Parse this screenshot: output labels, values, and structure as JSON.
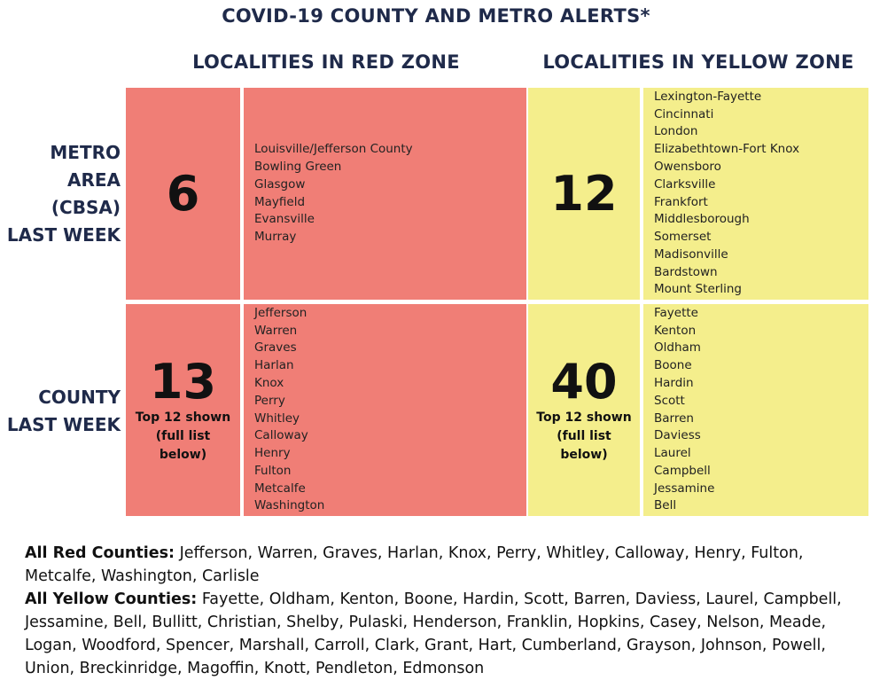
{
  "title": "COVID-19 COUNTY AND METRO ALERTS*",
  "columns": {
    "red": "LOCALITIES IN RED ZONE",
    "yellow": "LOCALITIES IN YELLOW ZONE"
  },
  "rows": {
    "metro": [
      "METRO",
      "AREA",
      "(CBSA)",
      "LAST WEEK"
    ],
    "county": [
      "COUNTY",
      "LAST WEEK"
    ]
  },
  "colors": {
    "red_zone": "#f07e76",
    "yellow_zone": "#f4ee8c",
    "heading": "#1f2a4a"
  },
  "metro": {
    "red": {
      "count": "6",
      "list": [
        "Louisville/Jefferson County",
        "Bowling Green",
        "Glasgow",
        "Mayfield",
        "Evansville",
        "Murray"
      ]
    },
    "yellow": {
      "count": "12",
      "list": [
        "Lexington-Fayette",
        "Cincinnati",
        "London",
        "Elizabethtown-Fort Knox",
        "Owensboro",
        "Clarksville",
        "Frankfort",
        "Middlesborough",
        "Somerset",
        "Madisonville",
        "Bardstown",
        "Mount Sterling"
      ]
    }
  },
  "county": {
    "red": {
      "count": "13",
      "note": [
        "Top 12 shown",
        "(full list",
        "below)"
      ],
      "list": [
        "Jefferson",
        "Warren",
        "Graves",
        "Harlan",
        "Knox",
        "Perry",
        "Whitley",
        "Calloway",
        "Henry",
        "Fulton",
        "Metcalfe",
        "Washington"
      ]
    },
    "yellow": {
      "count": "40",
      "note": [
        "Top 12 shown",
        "(full list",
        "below)"
      ],
      "list": [
        "Fayette",
        "Kenton",
        "Oldham",
        "Boone",
        "Hardin",
        "Scott",
        "Barren",
        "Daviess",
        "Laurel",
        "Campbell",
        "Jessamine",
        "Bell"
      ]
    }
  },
  "footer": {
    "red_label": "All Red Counties:",
    "red_text": " Jefferson, Warren, Graves, Harlan, Knox, Perry, Whitley, Calloway, Henry, Fulton, Metcalfe, Washington, Carlisle",
    "yellow_label": "All Yellow Counties:",
    "yellow_text": " Fayette, Oldham, Kenton, Boone, Hardin, Scott, Barren, Daviess, Laurel, Campbell, Jessamine, Bell, Bullitt, Christian, Shelby, Pulaski, Henderson, Franklin, Hopkins, Casey, Nelson, Meade, Logan, Woodford, Spencer, Marshall, Carroll, Clark, Grant, Hart, Cumberland, Grayson, Johnson, Powell, Union, Breckinridge, Magoffin, Knott, Pendleton, Edmonson"
  }
}
